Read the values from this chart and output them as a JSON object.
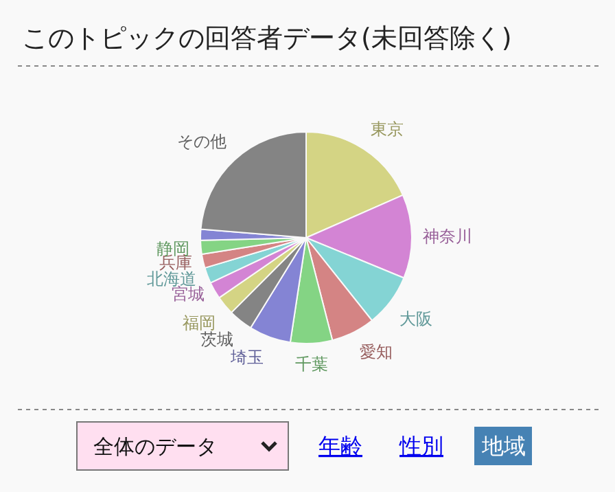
{
  "chart_data": {
    "type": "pie",
    "title": "このトピックの回答者データ(未回答除く)",
    "categories": [
      "東京",
      "神奈川",
      "大阪",
      "愛知",
      "千葉",
      "埼玉",
      "茨城",
      "福岡",
      "宮城",
      "北海道",
      "兵庫",
      "静岡",
      null,
      "その他"
    ],
    "values": [
      18.4,
      12.8,
      8.1,
      6.7,
      6.4,
      6.4,
      3.7,
      2.9,
      2.6,
      2.4,
      2.1,
      2.1,
      1.7,
      23.7
    ],
    "colors": [
      "#d4d484",
      "#d384d4",
      "#84d4d4",
      "#d48484",
      "#84d484",
      "#8484d4",
      "#848484",
      "#d4d484",
      "#d384d4",
      "#84d4d4",
      "#d48484",
      "#84d484",
      "#8484d4",
      "#848484"
    ],
    "annotations": [
      "全体のデータ",
      "年齢",
      "性別",
      "地域"
    ],
    "legend": false
  }
}
